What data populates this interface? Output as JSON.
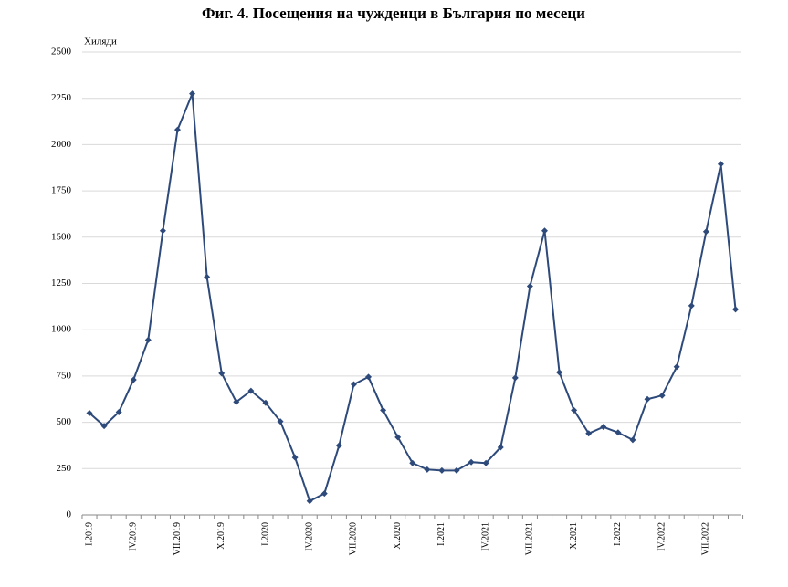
{
  "chart_data": {
    "type": "line",
    "title": "Фиг. 4. Посещения на чужденци в България по месеци",
    "y_unit_label": "Хиляди",
    "categories": [
      "I.2019",
      null,
      null,
      "IV.2019",
      null,
      null,
      "VII.2019",
      null,
      null,
      "X.2019",
      null,
      null,
      "I.2020",
      null,
      null,
      "IV.2020",
      null,
      null,
      "VII.2020",
      null,
      null,
      "X.2020",
      null,
      null,
      "I.2021",
      null,
      null,
      "IV.2021",
      null,
      null,
      "VII.2021",
      null,
      null,
      "X.2021",
      null,
      null,
      "I.2022",
      null,
      null,
      "IV.2022",
      null,
      null,
      "VII.2022",
      null,
      null
    ],
    "series": [
      {
        "name": "Посещения",
        "color": "#2e4a7a",
        "values": [
          550,
          480,
          555,
          730,
          945,
          1535,
          2080,
          2275,
          1285,
          765,
          610,
          670,
          605,
          505,
          310,
          75,
          115,
          375,
          705,
          745,
          565,
          420,
          280,
          245,
          240,
          240,
          285,
          280,
          365,
          740,
          1235,
          1535,
          770,
          565,
          440,
          475,
          445,
          405,
          625,
          645,
          800,
          1130,
          1530,
          1895,
          1110
        ]
      }
    ],
    "ylim": [
      0,
      2500
    ],
    "yticks": [
      0,
      250,
      500,
      750,
      1000,
      1250,
      1500,
      1750,
      2000,
      2250,
      2500
    ],
    "grid": true
  }
}
